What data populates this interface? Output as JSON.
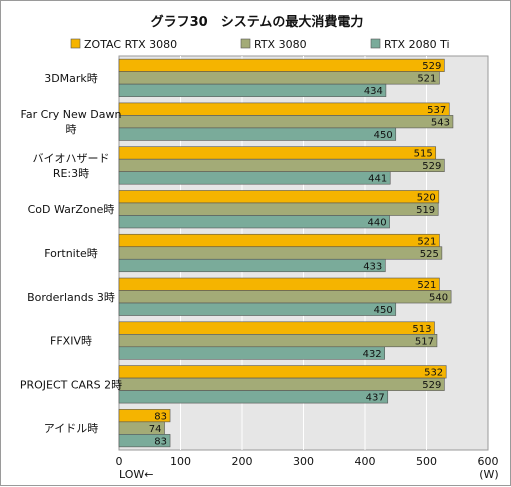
{
  "chart_data": {
    "type": "bar",
    "orientation": "horizontal",
    "title": "グラフ30　システムの最大消費電力",
    "categories": [
      [
        "3DMark時"
      ],
      [
        "Far Cry New Dawn",
        "時"
      ],
      [
        "バイオハザード",
        "RE:3時"
      ],
      [
        "CoD WarZone時"
      ],
      [
        "Fortnite時"
      ],
      [
        "Borderlands 3時"
      ],
      [
        "FFXIV時"
      ],
      [
        "PROJECT CARS 2時"
      ],
      [
        "アイドル時"
      ]
    ],
    "series": [
      {
        "name": "ZOTAC RTX 3080",
        "color": "#f5b400",
        "values": [
          529,
          537,
          515,
          520,
          521,
          521,
          513,
          532,
          83
        ]
      },
      {
        "name": "RTX 3080",
        "color": "#a3ab77",
        "values": [
          521,
          543,
          529,
          519,
          525,
          540,
          517,
          529,
          74
        ]
      },
      {
        "name": "RTX 2080 Ti",
        "color": "#7aab9a",
        "values": [
          434,
          450,
          441,
          440,
          433,
          450,
          432,
          437,
          83
        ]
      }
    ],
    "xlim": [
      0,
      600
    ],
    "xticks": [
      0,
      100,
      200,
      300,
      400,
      500,
      600
    ],
    "x_unit": "(W)",
    "x_direction_note": "LOW←",
    "legend_position": "top",
    "grid": true
  }
}
